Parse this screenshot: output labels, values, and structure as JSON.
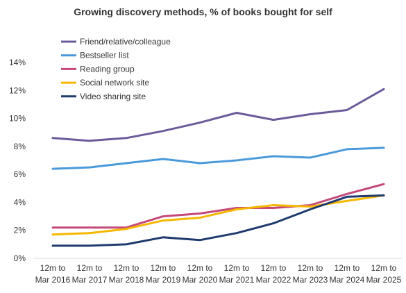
{
  "chart_data": {
    "type": "line",
    "title": "Growing discovery methods, % of books bought for self",
    "xlabel": "",
    "ylabel": "",
    "categories": [
      [
        "12m to",
        "Mar 2016"
      ],
      [
        "12m to",
        "Mar 2017"
      ],
      [
        "12m to",
        "Mar 2018"
      ],
      [
        "12m to",
        "Mar 2019"
      ],
      [
        "12m to",
        "Mar 2020"
      ],
      [
        "12m to",
        "Mar 2021"
      ],
      [
        "12m to",
        "Mar 2022"
      ],
      [
        "12m to",
        "Mar 2023"
      ],
      [
        "12m to",
        "Mar 2024"
      ],
      [
        "12m to",
        "Mar 2025"
      ]
    ],
    "ylim": [
      0,
      14
    ],
    "yticks": [
      0,
      2,
      4,
      6,
      8,
      10,
      12,
      14
    ],
    "ytick_labels": [
      "0%",
      "2%",
      "4%",
      "6%",
      "8%",
      "10%",
      "12%",
      "14%"
    ],
    "grid": false,
    "legend_position": "top-left",
    "series": [
      {
        "name": "Friend/relative/colleague",
        "color": "#6B5B9A",
        "values": [
          8.6,
          8.4,
          8.6,
          9.1,
          9.7,
          10.4,
          9.9,
          10.3,
          10.6,
          12.1
        ]
      },
      {
        "name": "Bestseller list",
        "color": "#4A9ADB",
        "values": [
          6.4,
          6.5,
          6.8,
          7.1,
          6.8,
          7.0,
          7.3,
          7.2,
          7.8,
          7.9
        ]
      },
      {
        "name": "Reading group",
        "color": "#C4497A",
        "values": [
          2.2,
          2.2,
          2.2,
          3.0,
          3.2,
          3.6,
          3.6,
          3.8,
          4.6,
          5.3
        ]
      },
      {
        "name": "Social network site",
        "color": "#F5B800",
        "values": [
          1.7,
          1.8,
          2.1,
          2.7,
          2.9,
          3.5,
          3.8,
          3.7,
          4.1,
          4.5
        ]
      },
      {
        "name": "Video sharing site",
        "color": "#1F3A6E",
        "values": [
          0.9,
          0.9,
          1.0,
          1.5,
          1.3,
          1.8,
          2.5,
          3.5,
          4.4,
          4.5
        ]
      }
    ]
  }
}
